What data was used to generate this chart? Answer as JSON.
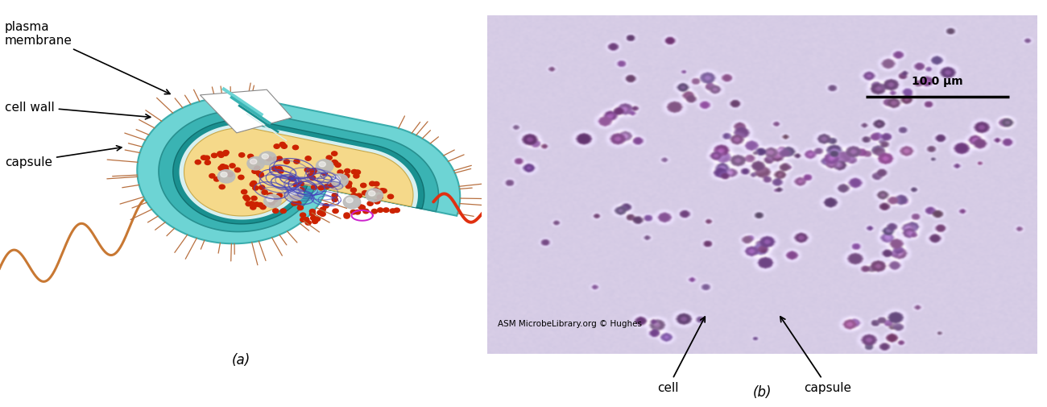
{
  "fig_width": 13.0,
  "fig_height": 5.06,
  "dpi": 100,
  "bg_color": "#ffffff",
  "label_a": "(a)",
  "label_b": "(b)",
  "capsule_color": "#6dd4d4",
  "cell_wall_color": "#3ab3b3",
  "plasma_membrane_color": "#1a9090",
  "gap_color": "#d8f0f0",
  "cytoplasm_color": "#f5d98a",
  "nucleoid_color": "#4444bb",
  "ribosome_color": "#cc2200",
  "granule_color": "#bbbbbb",
  "pili_color": "#b87040",
  "flagellum_color_main": "#c87833",
  "flagellum_color_red": "#e03010",
  "plasmid_color": "#cc22cc",
  "micrograph_bg_r": 0.84,
  "micrograph_bg_g": 0.8,
  "micrograph_bg_b": 0.9,
  "scalebar_text": "10.0 μm",
  "watermark_text": "ASM MicrobeLibrary.org © Hughes",
  "annotation_pm": "plasma\nmembrane",
  "annotation_cw": "cell wall",
  "annotation_cap": "capsule",
  "annotation_cell_b": "cell",
  "annotation_cap_b": "capsule"
}
